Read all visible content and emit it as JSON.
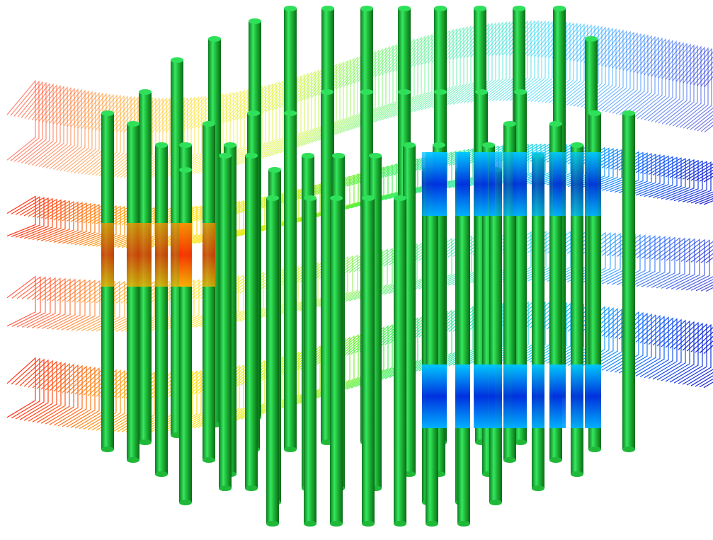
{
  "scene": {
    "subject": "tube-bundle-flow-visualization",
    "background": "#ffffff",
    "tube_color_top": "#2fe05a",
    "tube_color_mid": "#1fb838",
    "tube_color_dark": "#0e7a1f",
    "colormap": [
      "#0000c8",
      "#0060ff",
      "#00c8ff",
      "#20e6a0",
      "#40f040",
      "#c8f000",
      "#ffe000",
      "#ff9000",
      "#ff2000"
    ],
    "icons": [
      "tube-icon",
      "streamline-icon"
    ]
  }
}
